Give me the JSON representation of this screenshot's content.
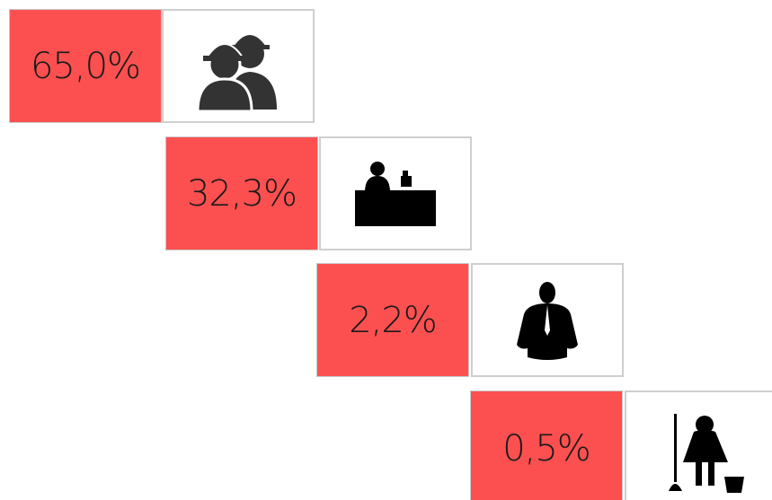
{
  "items": [
    {
      "label": "65,0%"
    },
    {
      "label": "32,3%"
    },
    {
      "label": "2,2%"
    },
    {
      "label": "0,5%"
    }
  ]
}
